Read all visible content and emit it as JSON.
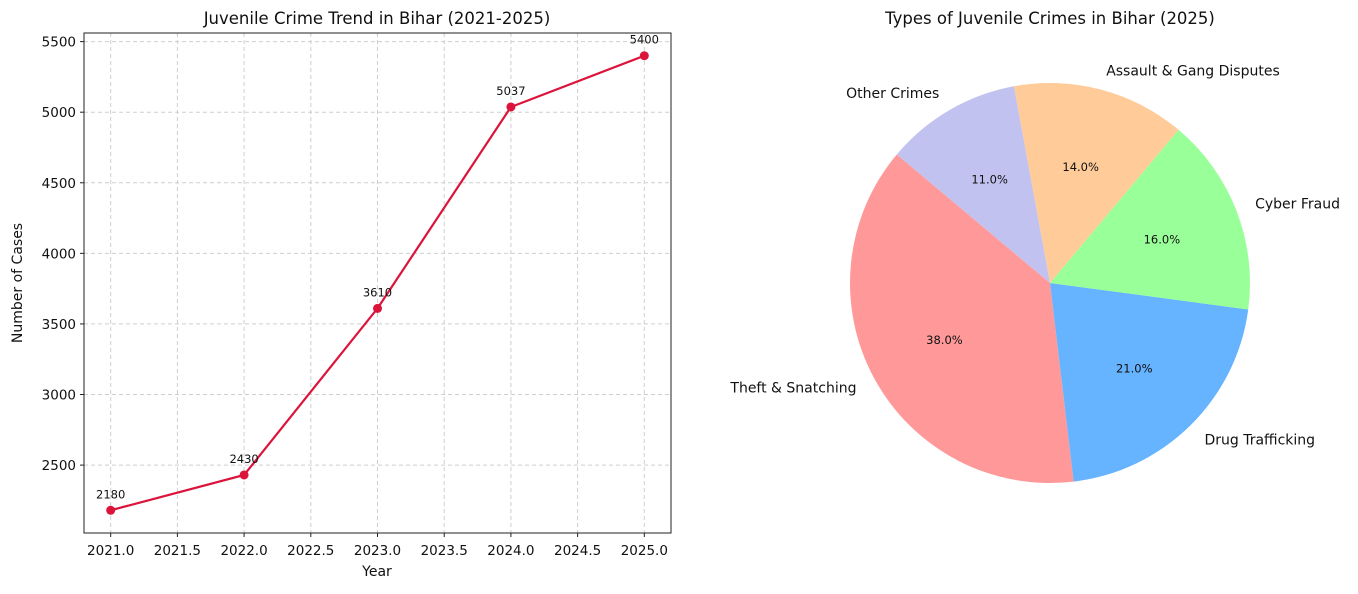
{
  "chart_data": [
    {
      "type": "line",
      "title": "Juvenile Crime Trend in Bihar (2021-2025)",
      "xlabel": "Year",
      "ylabel": "Number of Cases",
      "x": [
        2021,
        2022,
        2023,
        2024,
        2025
      ],
      "series": [
        {
          "values": [
            2180,
            2430,
            3610,
            5037,
            5400
          ],
          "color": "#dc143c"
        }
      ],
      "data_labels": [
        "2180",
        "2430",
        "3610",
        "5037",
        "5400"
      ],
      "xticks": [
        "2021.0",
        "2021.5",
        "2022.0",
        "2022.5",
        "2023.0",
        "2023.5",
        "2024.0",
        "2024.5",
        "2025.0"
      ],
      "yticks": [
        "2500",
        "3000",
        "3500",
        "4000",
        "4500",
        "5000",
        "5500"
      ],
      "xlim": [
        2020.8,
        2025.2
      ],
      "ylim": [
        2019,
        5561
      ],
      "grid": true
    },
    {
      "type": "pie",
      "title": "Types of Juvenile Crimes in Bihar (2025)",
      "categories": [
        "Theft & Snatching",
        "Drug Trafficking",
        "Cyber Fraud",
        "Assault & Gang Disputes",
        "Other Crimes"
      ],
      "values": [
        38.0,
        21.0,
        16.0,
        14.0,
        11.0
      ],
      "pct_labels": [
        "38.0%",
        "21.0%",
        "16.0%",
        "14.0%",
        "11.0%"
      ],
      "colors": [
        "#ff9999",
        "#66b3ff",
        "#99ff99",
        "#ffcc99",
        "#c2c2f0"
      ],
      "start_angle_deg": 140
    }
  ]
}
